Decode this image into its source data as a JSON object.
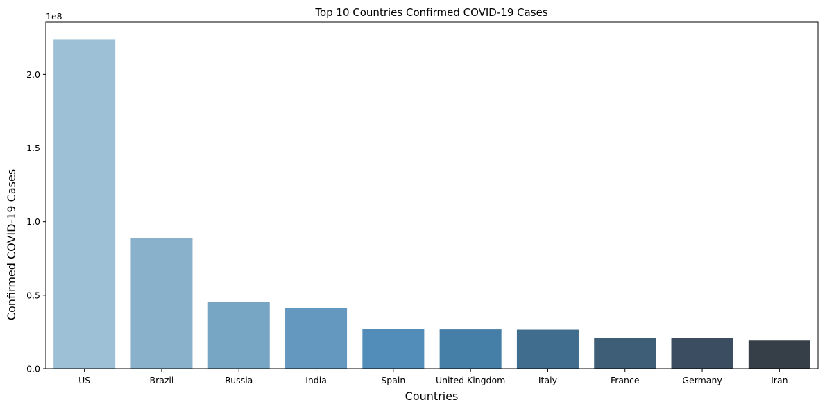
{
  "chart_data": {
    "type": "bar",
    "title": "Top 10 Countries Confirmed COVID-19 Cases",
    "xlabel": "Countries",
    "ylabel": "Confirmed COVID-19 Cases",
    "offset_text": "1e8",
    "categories": [
      "US",
      "Brazil",
      "Russia",
      "India",
      "Spain",
      "United Kingdom",
      "Italy",
      "France",
      "Germany",
      "Iran"
    ],
    "values": [
      224000000,
      89000000,
      45500000,
      41000000,
      27200000,
      26800000,
      26600000,
      21200000,
      21000000,
      19200000
    ],
    "colors": [
      "#9dc0d6",
      "#8ab1cc",
      "#77a6c5",
      "#6498bf",
      "#528cb8",
      "#457ea6",
      "#406d8d",
      "#3e5d76",
      "#3b4e61",
      "#363f47"
    ],
    "ylim": [
      0,
      235500000
    ],
    "yticks": [
      0,
      50000000,
      100000000,
      150000000,
      200000000
    ],
    "ytick_labels": [
      "0.0",
      "0.5",
      "1.0",
      "1.5",
      "2.0"
    ],
    "grid": false,
    "legend": "none"
  }
}
